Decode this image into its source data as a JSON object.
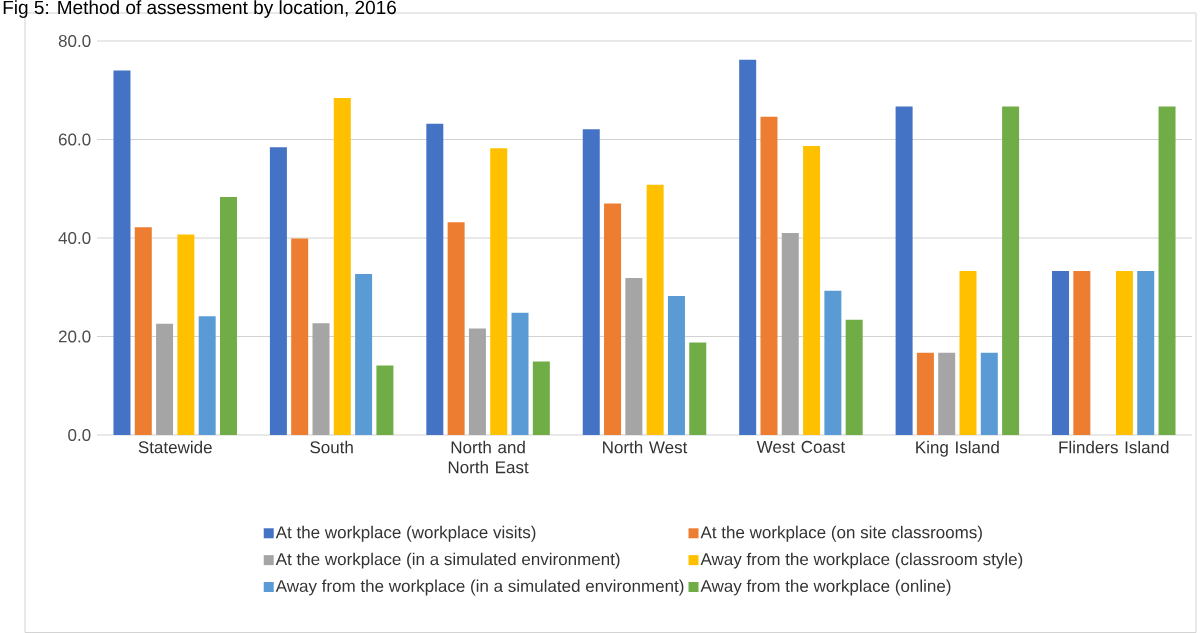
{
  "chart_data": {
    "type": "bar",
    "title": "Fig 5: Method of assessment by location, 2016",
    "categories": [
      "Statewide",
      "South",
      "North and North East",
      "North West",
      "West Coast",
      "King Island",
      "Flinders Island"
    ],
    "series": [
      {
        "name": "At the workplace (workplace visits)",
        "color": "#4472c4",
        "values": [
          74.0,
          58.4,
          63.2,
          62.1,
          76.2,
          66.7,
          33.3
        ]
      },
      {
        "name": "At the workplace (on site classrooms)",
        "color": "#ed7d31",
        "values": [
          42.2,
          39.9,
          43.2,
          47.0,
          64.6,
          16.7,
          33.3
        ]
      },
      {
        "name": "At the workplace (in a simulated environment)",
        "color": "#a5a5a5",
        "values": [
          22.6,
          22.7,
          21.6,
          31.9,
          41.0,
          16.7,
          null
        ]
      },
      {
        "name": "Away from the workplace (classroom style)",
        "color": "#ffc000",
        "values": [
          40.7,
          68.4,
          58.2,
          50.8,
          58.7,
          33.3,
          33.3
        ]
      },
      {
        "name": "Away from the workplace (in a simulated environment)",
        "color": "#5b9bd5",
        "values": [
          24.1,
          32.7,
          24.8,
          28.2,
          29.3,
          16.7,
          33.3
        ]
      },
      {
        "name": "Away from the workplace (online)",
        "color": "#70ad47",
        "values": [
          48.3,
          14.1,
          14.9,
          18.8,
          23.4,
          66.7,
          66.7
        ]
      }
    ],
    "ylim": [
      0,
      80
    ],
    "yticks": [
      {
        "value": 0,
        "label": "0.0"
      },
      {
        "value": 20,
        "label": "20.0"
      },
      {
        "value": 40,
        "label": "40.0"
      },
      {
        "value": 60,
        "label": "60.0"
      },
      {
        "value": 80,
        "label": "80.0"
      }
    ],
    "grid": "y",
    "legend": "bottom"
  }
}
